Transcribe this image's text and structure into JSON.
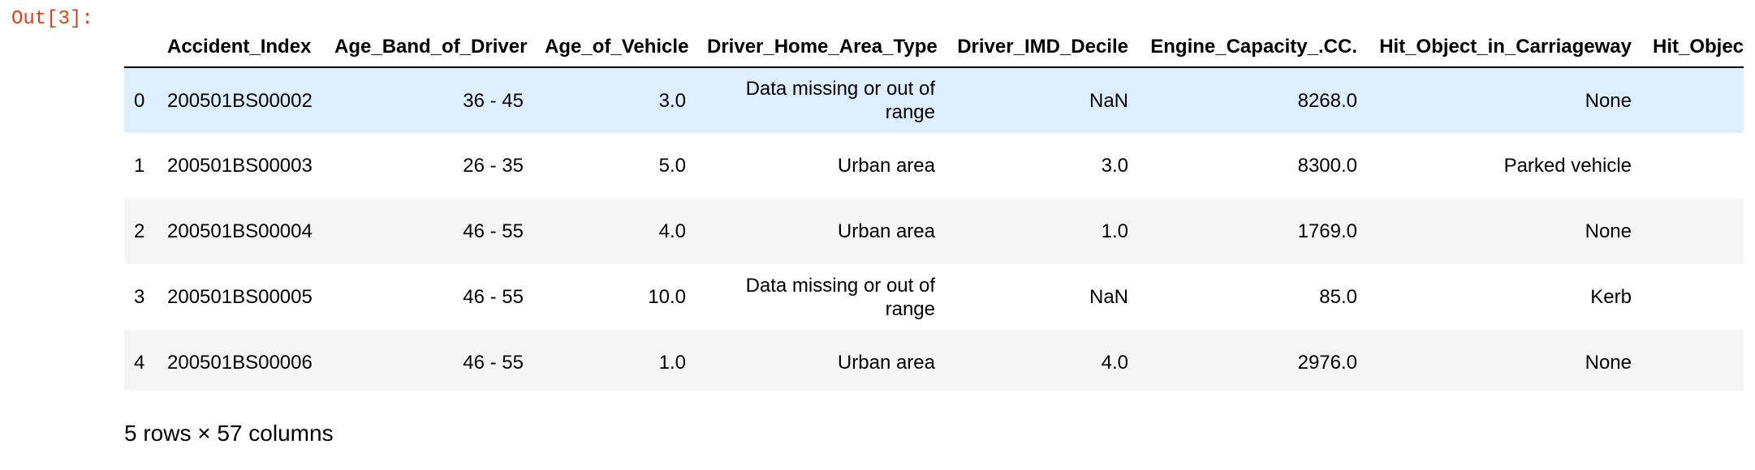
{
  "prompt": "Out[3]:",
  "table": {
    "columns": [
      "Accident_Index",
      "Age_Band_of_Driver",
      "Age_of_Vehicle",
      "Driver_Home_Area_Type",
      "Driver_IMD_Decile",
      "Engine_Capacity_.CC.",
      "Hit_Object_in_Carriageway",
      "Hit_Object_off_Carriageway"
    ],
    "rows": [
      {
        "index": "0",
        "cells": [
          "200501BS00002",
          "36 - 45",
          "3.0",
          "Data missing or out of range",
          "NaN",
          "8268.0",
          "None",
          ""
        ]
      },
      {
        "index": "1",
        "cells": [
          "200501BS00003",
          "26 - 35",
          "5.0",
          "Urban area",
          "3.0",
          "8300.0",
          "Parked vehicle",
          ""
        ]
      },
      {
        "index": "2",
        "cells": [
          "200501BS00004",
          "46 - 55",
          "4.0",
          "Urban area",
          "1.0",
          "1769.0",
          "None",
          ""
        ]
      },
      {
        "index": "3",
        "cells": [
          "200501BS00005",
          "46 - 55",
          "10.0",
          "Data missing or out of range",
          "NaN",
          "85.0",
          "Kerb",
          ""
        ]
      },
      {
        "index": "4",
        "cells": [
          "200501BS00006",
          "46 - 55",
          "1.0",
          "Urban area",
          "4.0",
          "2976.0",
          "None",
          ""
        ]
      }
    ],
    "highlighted_row": 0
  },
  "summary": "5 rows × 57 columns",
  "colors": {
    "prompt": "#d84315",
    "row_even": "#f5f5f5",
    "row_hover": "#ddeeff"
  }
}
